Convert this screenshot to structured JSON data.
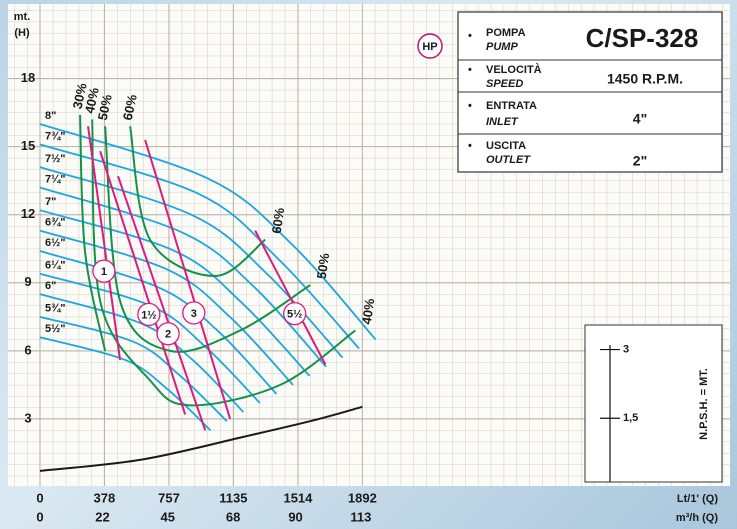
{
  "chart_data": {
    "type": "line",
    "badge": "HP",
    "ylabel": {
      "unit": "mt.",
      "symbol": "(H)"
    },
    "xlabel": "Lt/1' (Q)",
    "x2label": "m³/h (Q)",
    "y2label": "N.P.S.H. = MT.",
    "xlim": [
      0,
      4050
    ],
    "xticks": [
      0,
      378,
      757,
      1135,
      1514,
      1892
    ],
    "x2lim": [
      0,
      243
    ],
    "x2ticks": [
      0,
      22,
      45,
      68,
      90,
      113
    ],
    "ylim": [
      0,
      21.2
    ],
    "yticks": [
      3,
      6,
      9,
      12,
      15,
      18
    ],
    "y2lim": [
      0,
      10.5
    ],
    "y2ticks": [
      {
        "value": 1.5,
        "label": "1,5"
      },
      3
    ],
    "grid": true,
    "series": [
      {
        "name": "8\"",
        "color": "#1ea6df",
        "x": [
          0,
          985,
          1478,
          1970
        ],
        "values": [
          16.0,
          13.6,
          10.7,
          6.5
        ]
      },
      {
        "name": "7¾\"",
        "color": "#1ea6df",
        "x": [
          0,
          937,
          1405,
          1873
        ],
        "values": [
          15.1,
          12.9,
          10.0,
          6.1
        ]
      },
      {
        "name": "7½\"",
        "color": "#1ea6df",
        "x": [
          0,
          888,
          1332,
          1776
        ],
        "values": [
          14.1,
          12.0,
          9.4,
          5.7
        ]
      },
      {
        "name": "7¼\"",
        "color": "#1ea6df",
        "x": [
          0,
          840,
          1259,
          1679
        ],
        "values": [
          13.2,
          11.2,
          8.8,
          5.3
        ]
      },
      {
        "name": "7\"",
        "color": "#1ea6df",
        "x": [
          0,
          791,
          1187,
          1582
        ],
        "values": [
          12.2,
          10.4,
          8.1,
          4.9
        ]
      },
      {
        "name": "6¾\"",
        "color": "#1ea6df",
        "x": [
          0,
          743,
          1114,
          1485
        ],
        "values": [
          11.3,
          9.6,
          7.5,
          4.5
        ]
      },
      {
        "name": "6½\"",
        "color": "#1ea6df",
        "x": [
          0,
          694,
          1041,
          1388
        ],
        "values": [
          10.4,
          8.8,
          6.9,
          4.1
        ]
      },
      {
        "name": "6¼\"",
        "color": "#1ea6df",
        "x": [
          0,
          646,
          968,
          1291
        ],
        "values": [
          9.4,
          8.0,
          6.2,
          3.7
        ]
      },
      {
        "name": "6\"",
        "color": "#1ea6df",
        "x": [
          0,
          597,
          896,
          1194
        ],
        "values": [
          8.5,
          7.2,
          5.6,
          3.3
        ]
      },
      {
        "name": "5¾\"",
        "color": "#1ea6df",
        "x": [
          0,
          549,
          823,
          1097
        ],
        "values": [
          7.5,
          6.4,
          4.9,
          2.9
        ]
      },
      {
        "name": "5½\"",
        "color": "#1ea6df",
        "x": [
          0,
          500,
          750,
          1000
        ],
        "values": [
          6.6,
          5.6,
          4.3,
          2.5
        ]
      },
      {
        "color": "#1a1a1a",
        "axis": "y2",
        "x": [
          0,
          600,
          1200,
          1600,
          1892
        ],
        "values": [
          0.35,
          0.6,
          1.1,
          1.45,
          1.75
        ]
      }
    ],
    "efficiency": [
      {
        "name": "30%",
        "color": "#14924a",
        "x": [
          235,
          264,
          382
        ],
        "values": [
          16.4,
          10.4,
          6.0
        ]
      },
      {
        "name": "40%",
        "color": "#14924a",
        "x": [
          306,
          353,
          646,
          881,
          1410,
          1851
        ],
        "values": [
          16.2,
          8.2,
          4.7,
          3.6,
          4.5,
          6.9
        ]
      },
      {
        "name": "50%",
        "color": "#14924a",
        "x": [
          382,
          470,
          764,
          1175,
          1586
        ],
        "values": [
          15.9,
          8.2,
          6.0,
          6.9,
          8.9
        ]
      },
      {
        "name": "60%",
        "color": "#14924a",
        "x": [
          529,
          646,
          1028,
          1322
        ],
        "values": [
          15.9,
          10.9,
          9.3,
          10.9
        ]
      }
    ],
    "power": [
      {
        "name": "1",
        "color": "#e0197d",
        "x": [
          282,
          470
        ],
        "values": [
          15.9,
          5.6
        ]
      },
      {
        "name": "1½",
        "color": "#e0197d",
        "x": [
          353,
          852
        ],
        "values": [
          14.8,
          3.2
        ]
      },
      {
        "name": "2",
        "color": "#e0197d",
        "x": [
          458,
          970
        ],
        "values": [
          13.7,
          2.5
        ]
      },
      {
        "name": "3",
        "color": "#e0197d",
        "x": [
          617,
          1116
        ],
        "values": [
          15.3,
          3.0
        ]
      },
      {
        "name": "5½",
        "color": "#e0197d",
        "x": [
          1263,
          1675
        ],
        "values": [
          11.3,
          5.4
        ]
      }
    ]
  },
  "info_box": {
    "rows": [
      {
        "label": "POMPA",
        "label_en": "PUMP",
        "value": "C/SP-328"
      },
      {
        "label": "VELOCITÀ",
        "label_en": "SPEED",
        "value": "1450 R.P.M."
      },
      {
        "label": "ENTRATA",
        "label_en": "INLET",
        "value": "4\""
      },
      {
        "label": "USCITA",
        "label_en": "OUTLET",
        "value": "2\""
      }
    ]
  }
}
